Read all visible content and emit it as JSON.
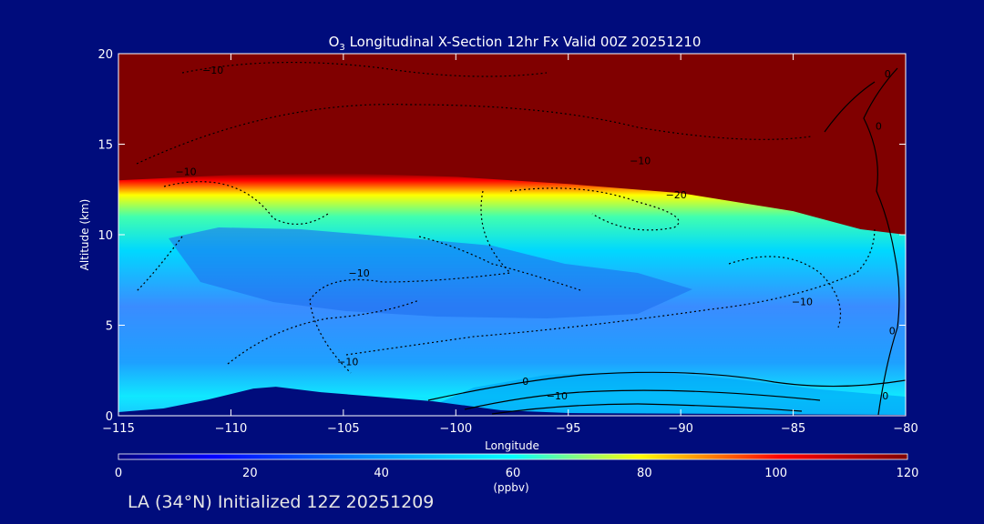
{
  "colors": {
    "background": "#000c7c",
    "stratosphere": "#800000",
    "text": "#ffffff",
    "colormap": [
      "#000080",
      "#0000ff",
      "#0080ff",
      "#00c8ff",
      "#00ffff",
      "#80ff80",
      "#ffff00",
      "#ff8000",
      "#ff0000",
      "#800000"
    ]
  },
  "footer": {
    "label": "LA (34°N) Initialized 12Z 20251209"
  },
  "chart_data": {
    "type": "heatmap",
    "title_prefix": "O",
    "title_sub": "3",
    "title_rest": " Longitudinal X-Section 12hr  Fx Valid 00Z 20251210",
    "xlabel": "Longitude",
    "ylabel": "Altitude (km)",
    "xlim": [
      -115,
      -80
    ],
    "ylim": [
      0,
      20
    ],
    "xticks": [
      -115,
      -110,
      -105,
      -100,
      -95,
      -90,
      -85,
      -80
    ],
    "xtick_labels": [
      "−115",
      "−110",
      "−105",
      "−100",
      "−95",
      "−90",
      "−85",
      "−80"
    ],
    "yticks": [
      0,
      5,
      10,
      15,
      20
    ],
    "ytick_labels": [
      "0",
      "5",
      "10",
      "15",
      "20"
    ],
    "colorbar": {
      "min": 0,
      "max": 120,
      "ticks": [
        0,
        20,
        40,
        60,
        80,
        100,
        120
      ],
      "tick_labels": [
        "0",
        "20",
        "40",
        "60",
        "80",
        "100",
        "120"
      ],
      "unit": "(ppbv)"
    },
    "tropopause_km": [
      {
        "lon": -115,
        "alt": 13.0
      },
      {
        "lon": -110,
        "alt": 13.3
      },
      {
        "lon": -105,
        "alt": 13.4
      },
      {
        "lon": -100,
        "alt": 13.2
      },
      {
        "lon": -95,
        "alt": 12.8
      },
      {
        "lon": -90,
        "alt": 12.3
      },
      {
        "lon": -85,
        "alt": 11.3
      },
      {
        "lon": -82,
        "alt": 10.3
      },
      {
        "lon": -80,
        "alt": 10.0
      }
    ],
    "terrain_km": [
      {
        "lon": -115,
        "alt": 0.2
      },
      {
        "lon": -113,
        "alt": 0.4
      },
      {
        "lon": -111,
        "alt": 0.9
      },
      {
        "lon": -109,
        "alt": 1.5
      },
      {
        "lon": -108,
        "alt": 1.6
      },
      {
        "lon": -106,
        "alt": 1.3
      },
      {
        "lon": -104,
        "alt": 1.1
      },
      {
        "lon": -101,
        "alt": 0.8
      },
      {
        "lon": -98,
        "alt": 0.3
      },
      {
        "lon": -95,
        "alt": 0.15
      },
      {
        "lon": -80,
        "alt": 0.05
      }
    ],
    "contour_labels": [
      {
        "text": "−10",
        "lon": -110.8,
        "alt": 18.9
      },
      {
        "text": "−10",
        "lon": -112.0,
        "alt": 13.3
      },
      {
        "text": "−10",
        "lon": -91.8,
        "alt": 13.9
      },
      {
        "text": "−20",
        "lon": -90.2,
        "alt": 12.0
      },
      {
        "text": "−10",
        "lon": -104.3,
        "alt": 7.7
      },
      {
        "text": "−10",
        "lon": -104.8,
        "alt": 2.8
      },
      {
        "text": "−10",
        "lon": -84.6,
        "alt": 6.1
      },
      {
        "text": "0",
        "lon": -96.9,
        "alt": 1.7
      },
      {
        "text": "−10",
        "lon": -95.5,
        "alt": 0.9
      },
      {
        "text": "0",
        "lon": -80.9,
        "alt": 0.9
      },
      {
        "text": "0",
        "lon": -80.6,
        "alt": 4.5
      },
      {
        "text": "0",
        "lon": -81.2,
        "alt": 15.8
      },
      {
        "text": "0",
        "lon": -80.8,
        "alt": 18.7
      }
    ]
  }
}
